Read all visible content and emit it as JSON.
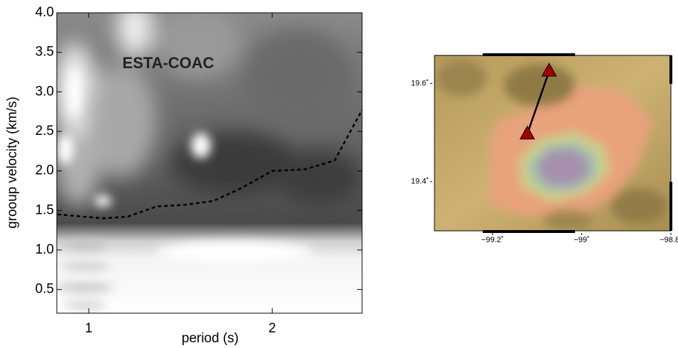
{
  "chart_data": [
    {
      "type": "contour",
      "annotation": "ESTA-COAC",
      "x_label": "period (s)",
      "y_label": "grooup velocity (km/s)",
      "xlim": [
        0.826,
        2.49
      ],
      "xticks": [
        1,
        2
      ],
      "ylim": [
        0.2,
        4.0
      ],
      "yticks": [
        0.5,
        {
          "value": 1,
          "label": "1.0"
        },
        1.5,
        {
          "value": 2,
          "label": "2.0"
        },
        2.5,
        {
          "value": 3,
          "label": "3.0"
        },
        3.5,
        {
          "value": 4,
          "label": "4.0"
        }
      ],
      "series": [
        {
          "color": "#000000",
          "dash": true,
          "x": [
            0.83,
            1.08,
            1.21,
            1.37,
            1.52,
            1.68,
            1.83,
            2.0,
            2.18,
            2.34,
            2.49
          ],
          "values": [
            1.45,
            1.4,
            1.42,
            1.55,
            1.57,
            1.62,
            1.78,
            2.0,
            2.02,
            2.13,
            2.77
          ]
        }
      ]
    },
    {
      "type": "map",
      "xlim": [
        -99.33,
        -98.8
      ],
      "ylim": [
        19.3,
        19.657
      ],
      "xticks": [
        {
          "value": -99.2,
          "label": "−99.2˚"
        },
        {
          "value": -99,
          "label": "−99˚"
        },
        {
          "value": -98.8,
          "label": "−98.8˚"
        }
      ],
      "yticks": [
        {
          "value": 19.4,
          "label": "19.4˚"
        },
        {
          "value": 19.6,
          "label": "19.6˚"
        }
      ],
      "stations": {
        "color": "#a00000",
        "x": [
          -99.073,
          -99.122
        ],
        "values": [
          19.625,
          19.497
        ]
      }
    }
  ]
}
